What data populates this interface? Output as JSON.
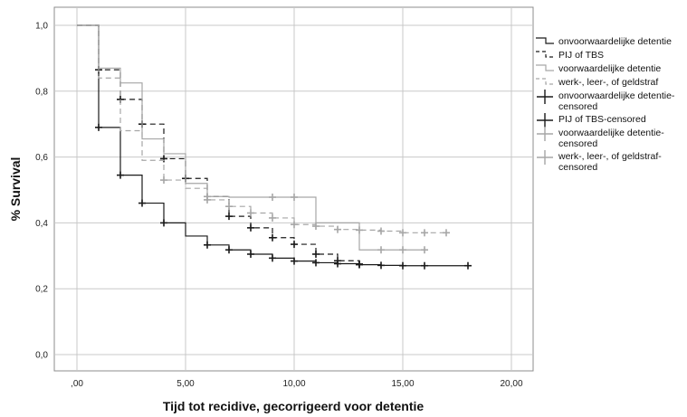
{
  "chart_data": {
    "type": "line",
    "subtype": "kaplan-meier-step",
    "title": "",
    "xlabel": "Tijd tot recidive, gecorrigeerd voor detentie",
    "ylabel": "% Survival",
    "xlim": [
      0,
      21
    ],
    "ylim": [
      0,
      1.05
    ],
    "xticks": [
      0,
      5,
      10,
      15,
      20
    ],
    "xtick_labels": [
      ",00",
      "5,00",
      "10,00",
      "15,00",
      "20,00"
    ],
    "yticks": [
      0,
      0.2,
      0.4,
      0.6,
      0.8,
      1.0
    ],
    "ytick_labels": [
      "0,0",
      "0,2",
      "0,4",
      "0,6",
      "0,8",
      "1,0"
    ],
    "grid": true,
    "legend_position": "right",
    "series": [
      {
        "name": "onvoorwaardelijke detentie",
        "censored_name": "onvoorwaardelijke detentie-censored",
        "color": "#1a1a1a",
        "dash": "solid",
        "steps": [
          [
            0,
            1.0
          ],
          [
            1,
            0.69
          ],
          [
            2,
            0.545
          ],
          [
            3,
            0.46
          ],
          [
            4,
            0.4
          ],
          [
            5,
            0.36
          ],
          [
            6,
            0.333
          ],
          [
            7,
            0.318
          ],
          [
            8,
            0.305
          ],
          [
            9,
            0.293
          ],
          [
            10,
            0.284
          ],
          [
            11,
            0.279
          ],
          [
            12,
            0.276
          ],
          [
            13,
            0.273
          ],
          [
            14,
            0.271
          ],
          [
            15,
            0.27
          ],
          [
            18,
            0.27
          ]
        ],
        "censored": [
          [
            1,
            0.69
          ],
          [
            2,
            0.545
          ],
          [
            3,
            0.46
          ],
          [
            4,
            0.4
          ],
          [
            6,
            0.333
          ],
          [
            7,
            0.318
          ],
          [
            8,
            0.305
          ],
          [
            9,
            0.293
          ],
          [
            10,
            0.284
          ],
          [
            11,
            0.279
          ],
          [
            12,
            0.276
          ],
          [
            13,
            0.273
          ],
          [
            14,
            0.271
          ],
          [
            15,
            0.27
          ],
          [
            16,
            0.27
          ],
          [
            18,
            0.27
          ]
        ]
      },
      {
        "name": "PIJ of TBS",
        "censored_name": "PIJ of TBS-censored",
        "color": "#1a1a1a",
        "dash": "dashed",
        "steps": [
          [
            0,
            1.0
          ],
          [
            1,
            0.865
          ],
          [
            2,
            0.775
          ],
          [
            3,
            0.7
          ],
          [
            4,
            0.595
          ],
          [
            5,
            0.535
          ],
          [
            6,
            0.48
          ],
          [
            7,
            0.42
          ],
          [
            8,
            0.385
          ],
          [
            9,
            0.355
          ],
          [
            10,
            0.335
          ],
          [
            11,
            0.305
          ],
          [
            12,
            0.285
          ],
          [
            13,
            0.275
          ]
        ],
        "censored": [
          [
            1,
            0.865
          ],
          [
            2,
            0.775
          ],
          [
            3,
            0.7
          ],
          [
            4,
            0.595
          ],
          [
            5,
            0.535
          ],
          [
            7,
            0.42
          ],
          [
            8,
            0.385
          ],
          [
            9,
            0.355
          ],
          [
            10,
            0.335
          ],
          [
            11,
            0.305
          ],
          [
            12,
            0.285
          ],
          [
            13,
            0.275
          ]
        ]
      },
      {
        "name": "voorwaardelijke detentie",
        "censored_name": "voorwaardelijke detentie-censored",
        "color": "#a6a6a6",
        "dash": "solid",
        "steps": [
          [
            0,
            1.0
          ],
          [
            1,
            0.87
          ],
          [
            2,
            0.825
          ],
          [
            3,
            0.655
          ],
          [
            4,
            0.61
          ],
          [
            5,
            0.52
          ],
          [
            6,
            0.48
          ],
          [
            7,
            0.478
          ],
          [
            11,
            0.4
          ],
          [
            13,
            0.318
          ],
          [
            16,
            0.318
          ]
        ],
        "censored": [
          [
            6,
            0.48
          ],
          [
            9,
            0.478
          ],
          [
            10,
            0.478
          ],
          [
            14,
            0.318
          ],
          [
            15,
            0.318
          ],
          [
            16,
            0.318
          ]
        ]
      },
      {
        "name": "werk-, leer-, of geldstraf",
        "censored_name": "werk-, leer-, of geldstraf-censored",
        "color": "#a6a6a6",
        "dash": "dashed",
        "steps": [
          [
            0,
            1.0
          ],
          [
            1,
            0.84
          ],
          [
            2,
            0.68
          ],
          [
            3,
            0.59
          ],
          [
            4,
            0.53
          ],
          [
            5,
            0.505
          ],
          [
            6,
            0.47
          ],
          [
            7,
            0.45
          ],
          [
            8,
            0.43
          ],
          [
            9,
            0.415
          ],
          [
            10,
            0.395
          ],
          [
            11,
            0.39
          ],
          [
            12,
            0.38
          ],
          [
            13,
            0.378
          ],
          [
            14,
            0.375
          ],
          [
            15,
            0.37
          ],
          [
            17,
            0.37
          ]
        ],
        "censored": [
          [
            4,
            0.53
          ],
          [
            6,
            0.47
          ],
          [
            7,
            0.45
          ],
          [
            8,
            0.43
          ],
          [
            9,
            0.415
          ],
          [
            10,
            0.395
          ],
          [
            11,
            0.39
          ],
          [
            12,
            0.38
          ],
          [
            13,
            0.378
          ],
          [
            14,
            0.375
          ],
          [
            15,
            0.37
          ],
          [
            16,
            0.37
          ],
          [
            17,
            0.37
          ]
        ]
      }
    ]
  }
}
